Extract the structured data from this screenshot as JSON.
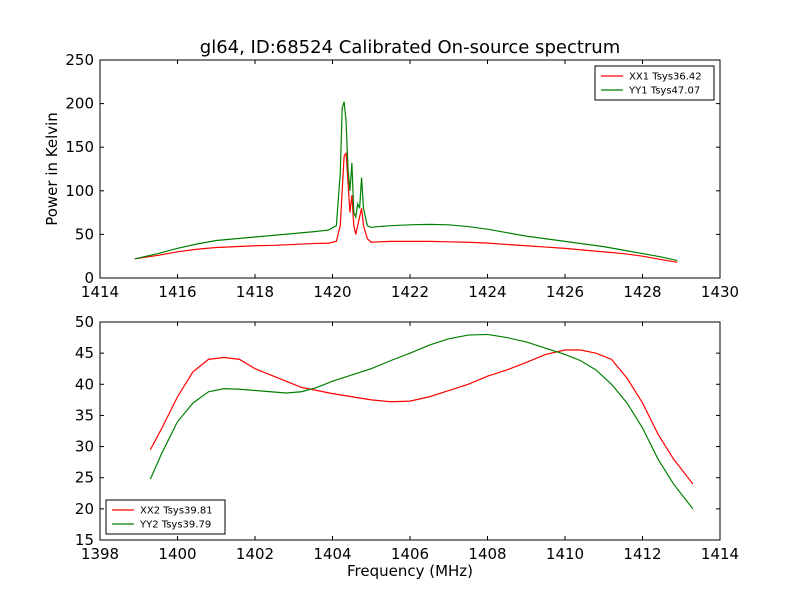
{
  "chart_data": [
    {
      "type": "line",
      "title": "gl64, ID:68524 Calibrated On-source spectrum",
      "xlabel": "",
      "ylabel": "Power in Kelvin",
      "xlim": [
        1414,
        1430
      ],
      "ylim": [
        0,
        250
      ],
      "xticks": [
        1414,
        1416,
        1418,
        1420,
        1422,
        1424,
        1426,
        1428,
        1430
      ],
      "yticks": [
        0,
        50,
        100,
        150,
        200,
        250
      ],
      "grid": false,
      "legend_position": "top-right",
      "series": [
        {
          "name": "XX1 Tsys36.42",
          "color": "#ff0000",
          "x": [
            1414.9,
            1415.5,
            1416.0,
            1416.5,
            1417.0,
            1417.5,
            1418.0,
            1418.5,
            1419.0,
            1419.5,
            1419.9,
            1420.1,
            1420.2,
            1420.25,
            1420.3,
            1420.35,
            1420.4,
            1420.45,
            1420.5,
            1420.55,
            1420.6,
            1420.65,
            1420.7,
            1420.75,
            1420.8,
            1420.9,
            1421.0,
            1421.2,
            1421.5,
            1422.0,
            1422.5,
            1423.0,
            1423.5,
            1424.0,
            1424.5,
            1425.0,
            1425.5,
            1426.0,
            1426.5,
            1427.0,
            1427.5,
            1428.0,
            1428.5,
            1428.9
          ],
          "y": [
            22,
            26,
            30,
            33,
            35,
            36,
            37,
            37.5,
            38.5,
            39.5,
            40,
            42,
            60,
            100,
            140,
            143,
            110,
            75,
            95,
            60,
            50,
            60,
            70,
            80,
            60,
            45,
            41,
            41.5,
            42,
            42,
            42,
            41.5,
            41,
            40,
            38.5,
            37,
            35.5,
            34,
            32,
            30,
            28,
            25,
            21,
            18
          ]
        },
        {
          "name": "YY1 Tsys47.07",
          "color": "#008000",
          "x": [
            1414.9,
            1415.5,
            1416.0,
            1416.5,
            1417.0,
            1417.5,
            1418.0,
            1418.5,
            1419.0,
            1419.5,
            1419.9,
            1420.1,
            1420.2,
            1420.25,
            1420.3,
            1420.35,
            1420.4,
            1420.45,
            1420.5,
            1420.55,
            1420.6,
            1420.65,
            1420.7,
            1420.75,
            1420.8,
            1420.9,
            1421.0,
            1421.2,
            1421.5,
            1422.0,
            1422.5,
            1423.0,
            1423.5,
            1424.0,
            1424.5,
            1425.0,
            1425.5,
            1426.0,
            1426.5,
            1427.0,
            1427.5,
            1428.0,
            1428.5,
            1428.9
          ],
          "y": [
            22,
            28,
            34,
            39,
            43,
            45,
            47,
            49,
            51,
            53,
            55,
            60,
            120,
            195,
            202,
            180,
            125,
            100,
            132,
            75,
            70,
            85,
            80,
            115,
            80,
            60,
            58,
            59,
            60,
            61,
            61.5,
            61,
            59,
            56,
            52,
            48,
            45,
            42,
            39,
            36,
            32,
            28,
            24,
            20
          ]
        }
      ]
    },
    {
      "type": "line",
      "title": "",
      "xlabel": "Frequency (MHz)",
      "ylabel": "",
      "xlim": [
        1398,
        1414
      ],
      "ylim": [
        15,
        50
      ],
      "xticks": [
        1398,
        1400,
        1402,
        1404,
        1406,
        1408,
        1410,
        1412,
        1414
      ],
      "yticks": [
        15,
        20,
        25,
        30,
        35,
        40,
        45,
        50
      ],
      "grid": false,
      "legend_position": "bottom-left",
      "series": [
        {
          "name": "XX2 Tsys39.81",
          "color": "#ff0000",
          "x": [
            1399.3,
            1399.6,
            1400.0,
            1400.4,
            1400.8,
            1401.2,
            1401.6,
            1402.0,
            1402.4,
            1402.8,
            1403.2,
            1403.6,
            1404.0,
            1404.5,
            1405.0,
            1405.5,
            1406.0,
            1406.5,
            1407.0,
            1407.5,
            1408.0,
            1408.5,
            1409.0,
            1409.5,
            1410.0,
            1410.4,
            1410.8,
            1411.2,
            1411.6,
            1412.0,
            1412.4,
            1412.8,
            1413.3
          ],
          "y": [
            29.5,
            33,
            38,
            42,
            44,
            44.3,
            44,
            42.5,
            41.5,
            40.5,
            39.5,
            39,
            38.5,
            38,
            37.5,
            37.2,
            37.3,
            38,
            39,
            40,
            41.3,
            42.3,
            43.5,
            44.8,
            45.5,
            45.5,
            45,
            44,
            41,
            37,
            32,
            28,
            24
          ]
        },
        {
          "name": "YY2 Tsys39.79",
          "color": "#008000",
          "x": [
            1399.3,
            1399.6,
            1400.0,
            1400.4,
            1400.8,
            1401.2,
            1401.6,
            1402.0,
            1402.4,
            1402.8,
            1403.2,
            1403.6,
            1404.0,
            1404.5,
            1405.0,
            1405.5,
            1406.0,
            1406.5,
            1407.0,
            1407.5,
            1408.0,
            1408.5,
            1409.0,
            1409.5,
            1410.0,
            1410.4,
            1410.8,
            1411.2,
            1411.6,
            1412.0,
            1412.4,
            1412.8,
            1413.3
          ],
          "y": [
            24.8,
            29,
            34,
            37,
            38.8,
            39.3,
            39.2,
            39,
            38.8,
            38.6,
            38.8,
            39.5,
            40.5,
            41.5,
            42.5,
            43.8,
            45,
            46.3,
            47.3,
            47.9,
            48,
            47.5,
            46.8,
            45.8,
            44.8,
            43.8,
            42.3,
            40,
            37,
            33,
            28,
            24,
            20
          ]
        }
      ]
    }
  ]
}
